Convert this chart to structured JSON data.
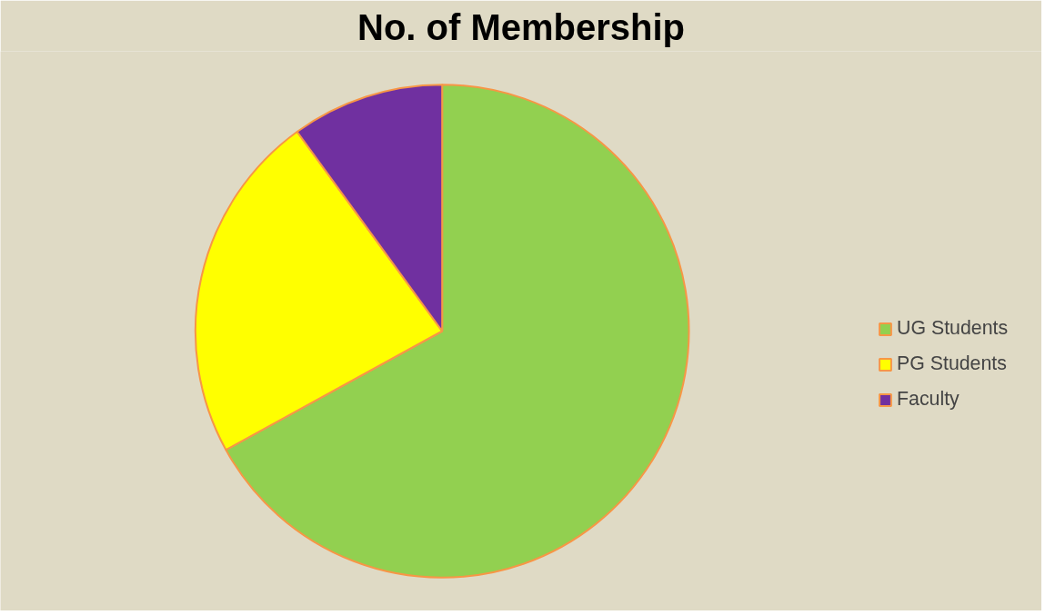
{
  "chart_data": {
    "type": "pie",
    "title": "No. of Membership",
    "categories": [
      "UG Students",
      "PG Students",
      "Faculty"
    ],
    "values": [
      67,
      23,
      10
    ],
    "colors": [
      "#92d050",
      "#ffff00",
      "#7030a0"
    ],
    "legend": "right"
  }
}
